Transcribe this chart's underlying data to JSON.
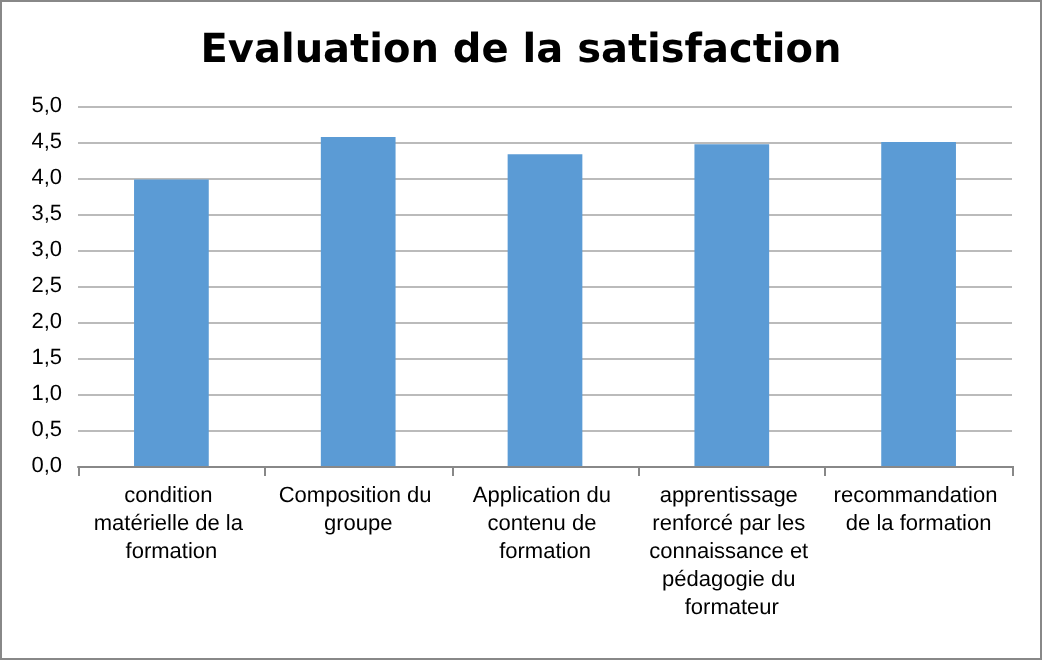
{
  "chart_data": {
    "type": "bar",
    "title": "Evaluation de la satisfaction",
    "categories": [
      "condition matérielle de la formation",
      "Composition du groupe",
      "Application du contenu de formation",
      "apprentissage renforcé par les connaissance et pédagogie du formateur",
      "recommandation de la formation"
    ],
    "values": [
      3.98,
      4.57,
      4.33,
      4.47,
      4.5
    ],
    "color": "#5b9bd5",
    "ylim": [
      0,
      5
    ],
    "yticks": [
      {
        "value": 0,
        "label": "0,0"
      },
      {
        "value": 0.5,
        "label": "0,5"
      },
      {
        "value": 1,
        "label": "1,0"
      },
      {
        "value": 1.5,
        "label": "1,5"
      },
      {
        "value": 2,
        "label": "2,0"
      },
      {
        "value": 2.5,
        "label": "2,5"
      },
      {
        "value": 3,
        "label": "3,0"
      },
      {
        "value": 3.5,
        "label": "3,5"
      },
      {
        "value": 4,
        "label": "4,0"
      },
      {
        "value": 4.5,
        "label": "4,5"
      },
      {
        "value": 5,
        "label": "5,0"
      }
    ],
    "grid": "y"
  }
}
